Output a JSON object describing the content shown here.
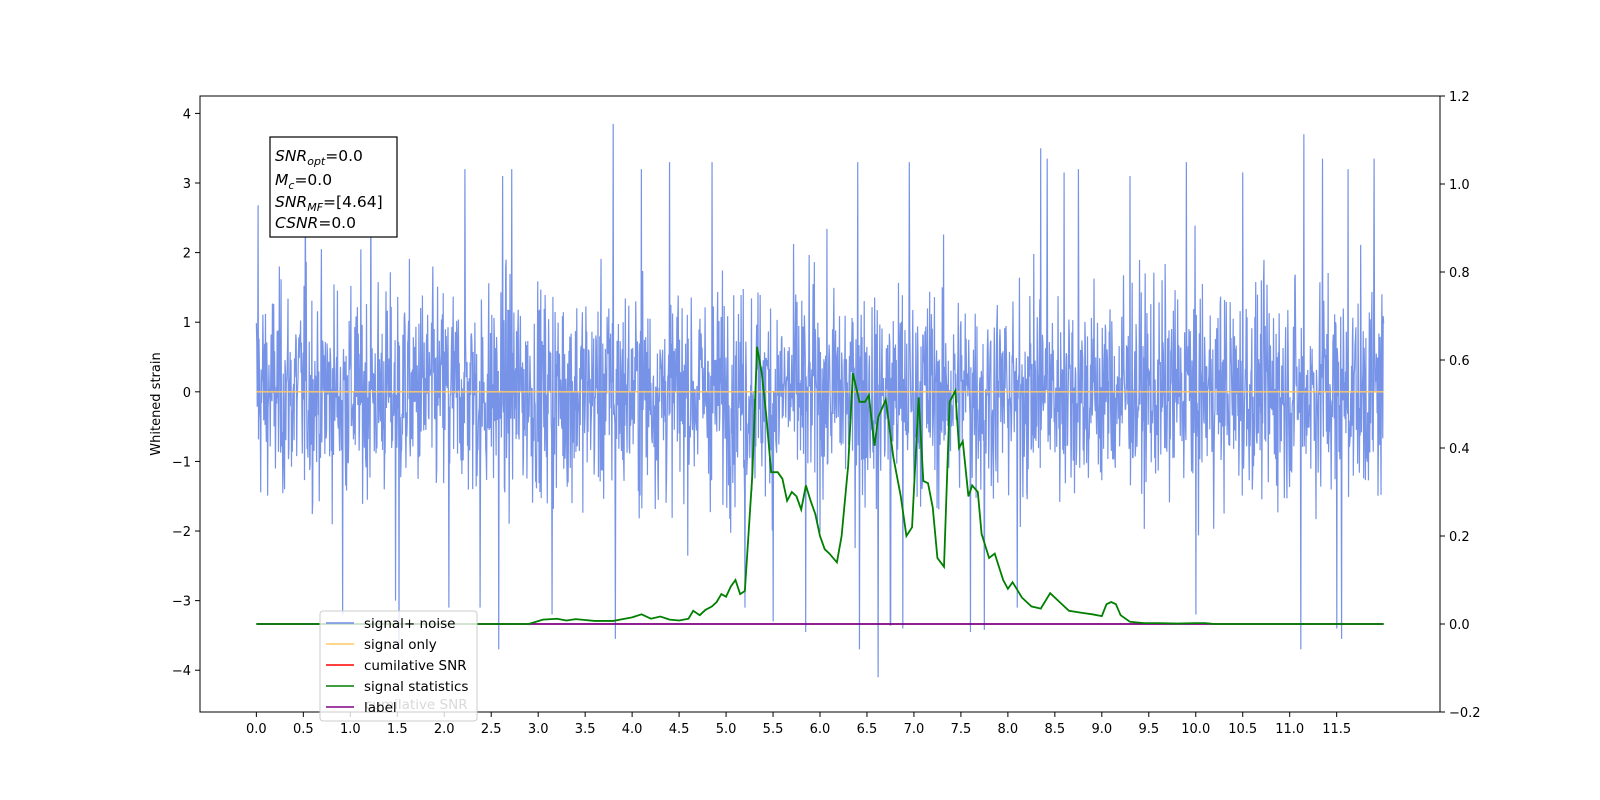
{
  "chart_data": {
    "type": "line",
    "ylabel": "Whitened strain",
    "xlim": [
      -0.6,
      12.6
    ],
    "ylim": [
      -4.6,
      4.25
    ],
    "ylim_right": [
      -0.2,
      1.2
    ],
    "x_ticks": [
      "0.0",
      "0.5",
      "1.0",
      "1.5",
      "2.0",
      "2.5",
      "3.0",
      "3.5",
      "4.0",
      "4.5",
      "5.0",
      "5.5",
      "6.0",
      "6.5",
      "7.0",
      "7.5",
      "8.0",
      "8.5",
      "9.0",
      "9.5",
      "10.0",
      "10.5",
      "11.0",
      "11.5"
    ],
    "y_ticks": [
      "4",
      "3",
      "2",
      "1",
      "0",
      "−1",
      "−2",
      "−3",
      "−4"
    ],
    "y_ticks_right": [
      "1.2",
      "1.0",
      "0.8",
      "0.6",
      "0.4",
      "0.2",
      "0.0",
      "−0.2"
    ],
    "info_box": {
      "snr_opt": {
        "symbol": "SNR",
        "sub": "opt",
        "value": "=0.0"
      },
      "mc": {
        "symbol": "M",
        "sub": "c",
        "value": "=0.0"
      },
      "snr_mf": {
        "symbol": "SNR",
        "sub": "MF",
        "value": "=[4.64]"
      },
      "csnr": {
        "symbol": "CSNR",
        "value": "=0.0"
      }
    },
    "legend": {
      "placement": "lower-left",
      "entries": [
        {
          "label": "signal+ noise",
          "color": "#7b96e8"
        },
        {
          "label": "signal only",
          "color": "#ffc966"
        },
        {
          "label": "cumilative SNR",
          "color": "#ff0000"
        },
        {
          "label": "signal statistics",
          "color": "#007f00"
        },
        {
          "label": "label",
          "color": "#800080"
        }
      ],
      "hidden_text": "cumilative SNR"
    },
    "series": [
      {
        "name": "signal+ noise",
        "axis": "left",
        "color": "#6f8de6",
        "x_range": [
          0.0,
          12.0
        ],
        "typical_range": [
          -1.8,
          1.8
        ],
        "x": [
          0.02,
          0.52,
          0.92,
          1.22,
          1.48,
          1.52,
          2.05,
          2.22,
          2.38,
          2.58,
          2.62,
          2.72,
          3.15,
          3.8,
          3.82,
          4.1,
          4.4,
          4.85,
          5.2,
          5.5,
          5.85,
          6.4,
          6.42,
          6.62,
          6.75,
          6.88,
          6.95,
          7.6,
          7.75,
          8.1,
          8.35,
          8.42,
          8.6,
          8.75,
          9.3,
          9.9,
          10.0,
          10.5,
          11.12,
          11.15,
          11.35,
          11.5,
          11.55,
          11.62,
          11.9
        ],
        "y": [
          2.68,
          3.2,
          -3.2,
          3.05,
          -3.0,
          -3.7,
          -3.1,
          3.2,
          -3.1,
          -3.7,
          3.1,
          3.2,
          -3.2,
          3.85,
          -3.55,
          3.2,
          3.3,
          3.3,
          -3.1,
          -3.3,
          -3.45,
          3.3,
          -3.7,
          -4.1,
          -3.35,
          -3.4,
          3.3,
          -3.45,
          -3.42,
          -3.1,
          3.5,
          3.35,
          3.15,
          3.2,
          3.1,
          3.3,
          -3.2,
          3.15,
          -3.7,
          3.7,
          3.35,
          -3.4,
          -3.55,
          3.2,
          3.35
        ]
      },
      {
        "name": "signal only",
        "axis": "left",
        "color": "#ffc966",
        "x": [
          0.0,
          12.0
        ],
        "y": [
          0.0,
          0.0
        ]
      },
      {
        "name": "signal statistics",
        "axis": "right",
        "color": "#007f00",
        "x": [
          0.0,
          2.9,
          3.05,
          3.2,
          3.3,
          3.4,
          3.5,
          3.6,
          3.8,
          3.9,
          4.0,
          4.1,
          4.2,
          4.3,
          4.4,
          4.5,
          4.6,
          4.65,
          4.72,
          4.78,
          4.85,
          4.9,
          4.95,
          5.0,
          5.05,
          5.1,
          5.15,
          5.2,
          5.28,
          5.33,
          5.38,
          5.43,
          5.48,
          5.55,
          5.6,
          5.65,
          5.7,
          5.75,
          5.8,
          5.85,
          5.9,
          5.95,
          6.0,
          6.05,
          6.1,
          6.18,
          6.23,
          6.3,
          6.35,
          6.42,
          6.48,
          6.52,
          6.58,
          6.62,
          6.7,
          6.78,
          6.86,
          6.92,
          6.98,
          7.05,
          7.1,
          7.15,
          7.2,
          7.25,
          7.32,
          7.38,
          7.44,
          7.48,
          7.52,
          7.58,
          7.62,
          7.68,
          7.72,
          7.8,
          7.86,
          7.95,
          8.0,
          8.05,
          8.15,
          8.25,
          8.35,
          8.45,
          8.55,
          8.65,
          8.8,
          8.9,
          9.0,
          9.05,
          9.1,
          9.15,
          9.2,
          9.3,
          9.45,
          9.6,
          9.8,
          10.0,
          10.1,
          10.2,
          12.0
        ],
        "y": [
          0.0,
          0.0,
          0.01,
          0.012,
          0.008,
          0.011,
          0.009,
          0.007,
          0.007,
          0.011,
          0.015,
          0.022,
          0.012,
          0.017,
          0.01,
          0.008,
          0.012,
          0.03,
          0.02,
          0.032,
          0.04,
          0.05,
          0.068,
          0.062,
          0.085,
          0.1,
          0.068,
          0.075,
          0.34,
          0.63,
          0.57,
          0.47,
          0.345,
          0.345,
          0.33,
          0.28,
          0.3,
          0.29,
          0.26,
          0.315,
          0.28,
          0.25,
          0.2,
          0.17,
          0.16,
          0.14,
          0.2,
          0.36,
          0.57,
          0.505,
          0.505,
          0.52,
          0.405,
          0.47,
          0.51,
          0.38,
          0.29,
          0.2,
          0.22,
          0.515,
          0.325,
          0.32,
          0.265,
          0.15,
          0.13,
          0.505,
          0.53,
          0.4,
          0.415,
          0.29,
          0.315,
          0.3,
          0.205,
          0.15,
          0.16,
          0.1,
          0.08,
          0.095,
          0.06,
          0.04,
          0.035,
          0.07,
          0.05,
          0.03,
          0.025,
          0.022,
          0.018,
          0.045,
          0.05,
          0.045,
          0.02,
          0.005,
          0.002,
          0.002,
          0.001,
          0.002,
          0.002,
          0.0,
          0.0
        ]
      },
      {
        "name": "label",
        "axis": "right",
        "color": "#800080",
        "x": [
          0.0,
          12.0
        ],
        "y": [
          0.0,
          0.0
        ]
      }
    ]
  }
}
